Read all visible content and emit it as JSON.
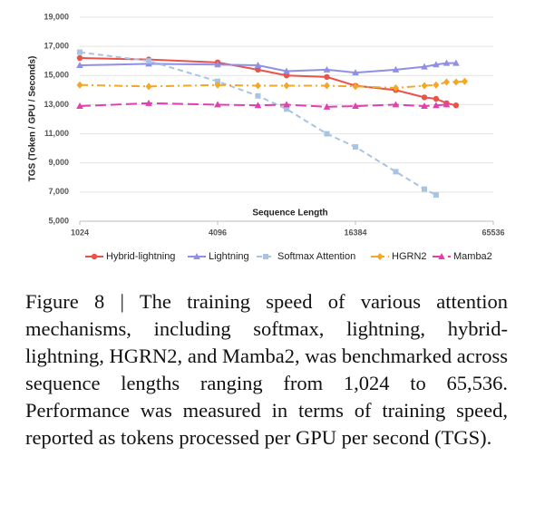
{
  "chart_data": {
    "type": "line",
    "xlabel": "Sequence Length",
    "ylabel": "TGS (Token / GPU / Seconds)",
    "xscale": "log2",
    "xlim": [
      1024,
      65536
    ],
    "xticks": [
      1024,
      4096,
      16384,
      65536
    ],
    "ylim": [
      5000,
      19000
    ],
    "yticks": [
      {
        "value": 5000,
        "label": "5,000"
      },
      {
        "value": 7000,
        "label": "7,000"
      },
      {
        "value": 9000,
        "label": "9,000"
      },
      {
        "value": 11000,
        "label": "11,000"
      },
      {
        "value": 13000,
        "label": "13,000"
      },
      {
        "value": 15000,
        "label": "15,000"
      },
      {
        "value": 17000,
        "label": "17,000"
      },
      {
        "value": 19000,
        "label": "19,000"
      }
    ],
    "grid": true,
    "legend": "bottom",
    "series": [
      {
        "name": "Hybrid-lightning",
        "color": "#e8534a",
        "marker": "circle",
        "dash": "solid",
        "x": [
          1024,
          2048,
          4096,
          6144,
          8192,
          12288,
          16384,
          24576,
          32768,
          36864,
          40960,
          45056
        ],
        "values": [
          16200,
          16100,
          15900,
          15400,
          15000,
          14900,
          14300,
          14000,
          13500,
          13400,
          13100,
          12950
        ]
      },
      {
        "name": "Lightning",
        "color": "#8f8fe8",
        "marker": "triangle",
        "dash": "solid",
        "x": [
          1024,
          2048,
          4096,
          6144,
          8192,
          12288,
          16384,
          24576,
          32768,
          36864,
          40960,
          45056
        ],
        "values": [
          15700,
          15800,
          15750,
          15700,
          15300,
          15400,
          15200,
          15400,
          15600,
          15750,
          15850,
          15850
        ]
      },
      {
        "name": "Softmax Attention",
        "color": "#a8c4e0",
        "marker": "square",
        "dash": "dash",
        "x": [
          1024,
          2048,
          4096,
          6144,
          8192,
          12288,
          16384,
          24576,
          32768,
          36864
        ],
        "values": [
          16600,
          16000,
          14600,
          13600,
          12700,
          11000,
          10100,
          8400,
          7200,
          6800
        ]
      },
      {
        "name": "HGRN2",
        "color": "#f5a623",
        "marker": "diamond",
        "dash": "dashdot",
        "x": [
          1024,
          2048,
          4096,
          6144,
          8192,
          12288,
          16384,
          24576,
          32768,
          36864,
          40960,
          45056,
          49152
        ],
        "values": [
          14350,
          14250,
          14350,
          14300,
          14300,
          14300,
          14250,
          14150,
          14300,
          14350,
          14550,
          14550,
          14600
        ]
      },
      {
        "name": "Mamba2",
        "color": "#e040b0",
        "marker": "triangle",
        "dash": "longdash",
        "x": [
          1024,
          2048,
          4096,
          6144,
          8192,
          12288,
          16384,
          24576,
          32768,
          36864,
          40960
        ],
        "values": [
          12900,
          13100,
          13000,
          12950,
          13000,
          12850,
          12900,
          13000,
          12900,
          12950,
          13000
        ]
      }
    ]
  },
  "caption": "Figure 8 | The training speed of various attention mechanisms, including softmax, lightning, hybrid-lightning, HGRN2, and Mamba2, was benchmarked across sequence lengths ranging from 1,024 to 65,536. Performance was measured in terms of training speed, reported as tokens processed per GPU per second (TGS)."
}
